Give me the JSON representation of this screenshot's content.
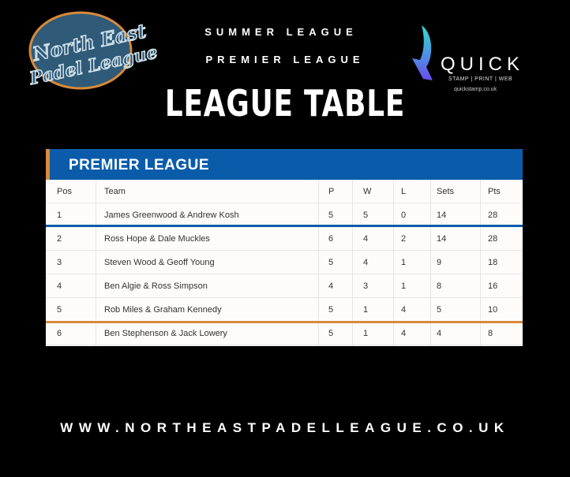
{
  "logos": {
    "left": "North East Padel League",
    "right": {
      "word": "QUICK",
      "tagline": "STAMP | PRINT | WEB",
      "url": "quickstamp.co.uk"
    }
  },
  "header": {
    "line1": "SUMMER LEAGUE",
    "line2": "PREMIER LEAGUE",
    "title": "LEAGUE TABLE"
  },
  "table": {
    "title": "PREMIER LEAGUE",
    "columns": [
      "Pos",
      "Team",
      "P",
      "W",
      "L",
      "Sets",
      "Pts"
    ],
    "rows": [
      [
        "1",
        "James Greenwood & Andrew Kosh",
        "5",
        "5",
        "0",
        "14",
        "28"
      ],
      [
        "2",
        "Ross Hope & Dale Muckles",
        "6",
        "4",
        "2",
        "14",
        "28"
      ],
      [
        "3",
        "Steven Wood & Geoff Young",
        "5",
        "4",
        "1",
        "9",
        "18"
      ],
      [
        "4",
        "Ben Algie & Ross Simpson",
        "4",
        "3",
        "1",
        "8",
        "16"
      ],
      [
        "5",
        "Rob Miles & Graham Kennedy",
        "5",
        "1",
        "4",
        "5",
        "10"
      ],
      [
        "6",
        "Ben Stephenson & Jack Lowery",
        "5",
        "1",
        "4",
        "4",
        "8"
      ]
    ]
  },
  "colors": {
    "header_blue": "#0a5cab",
    "accent_orange": "#d98a3a",
    "logo_blue": "#2f5a78"
  },
  "footer": {
    "url": "WWW.NORTHEASTPADELLEAGUE.CO.UK"
  }
}
